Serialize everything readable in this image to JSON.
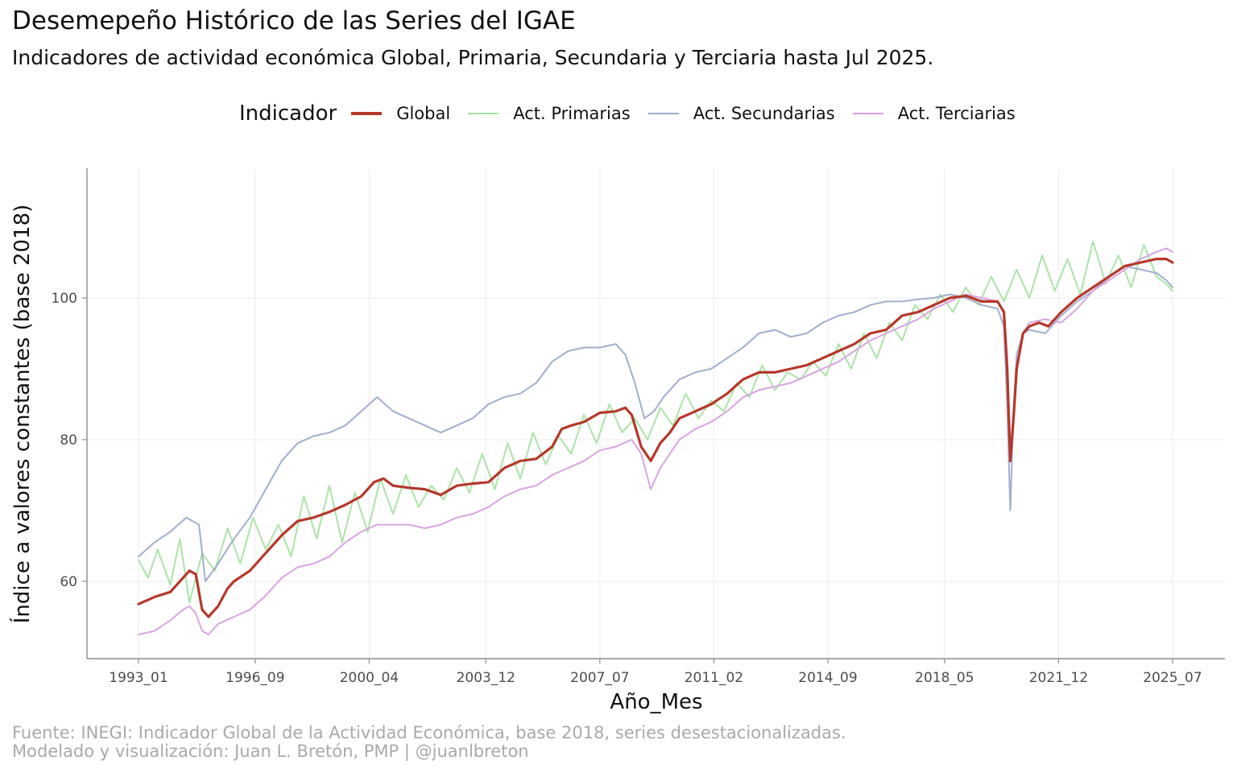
{
  "title": "Desemepeño Histórico de las Series del IGAE",
  "subtitle": "Indicadores de actividad económica Global, Primaria, Secundaria y Terciaria hasta Jul 2025.",
  "legend": {
    "title": "Indicador",
    "items": [
      {
        "label": "Global",
        "color": "#b5382a"
      },
      {
        "label": "Act. Primarias",
        "color": "#a7e3a2"
      },
      {
        "label": "Act. Secundarias",
        "color": "#9daacb"
      },
      {
        "label": "Act. Terciarias",
        "color": "#d6a0e0"
      }
    ]
  },
  "caption": {
    "line1": "Fuente: INEGI: Indicador Global de la Actividad Económica, base 2018, series desestacionalizadas.",
    "line2": "Modelado y visualización: Juan L. Bretón, PMP | @juanlbreton"
  },
  "chart_data": {
    "type": "line",
    "title": "Desemepeño Histórico de las Series del IGAE",
    "xlabel": "Año_Mes",
    "ylabel": "Índice a valores constantes (base 2018)",
    "x_range": [
      1993.0,
      2025.5
    ],
    "ylim": [
      49.5,
      118.5
    ],
    "x_ticks": [
      {
        "label": "1993_01",
        "x": 1993.0
      },
      {
        "label": "1996_09",
        "x": 1996.667
      },
      {
        "label": "2000_04",
        "x": 2000.25
      },
      {
        "label": "2003_12",
        "x": 2003.917
      },
      {
        "label": "2007_07",
        "x": 2007.5
      },
      {
        "label": "2011_02",
        "x": 2011.083
      },
      {
        "label": "2014_09",
        "x": 2014.667
      },
      {
        "label": "2018_05",
        "x": 2018.333
      },
      {
        "label": "2021_12",
        "x": 2021.917
      },
      {
        "label": "2025_07",
        "x": 2025.5
      }
    ],
    "y_ticks": [
      60,
      80,
      100
    ],
    "grid": true,
    "legend_position": "top",
    "series": [
      {
        "name": "Global",
        "color": "#b5382a",
        "width": 3.2,
        "x": [
          1993.0,
          1993.5,
          1994.0,
          1994.4,
          1994.6,
          1994.8,
          1995.0,
          1995.2,
          1995.5,
          1995.8,
          1996.0,
          1996.5,
          1997.0,
          1997.5,
          1998.0,
          1998.5,
          1999.0,
          1999.5,
          2000.0,
          2000.4,
          2000.7,
          2001.0,
          2001.5,
          2002.0,
          2002.5,
          2003.0,
          2003.5,
          2004.0,
          2004.5,
          2005.0,
          2005.5,
          2006.0,
          2006.3,
          2006.6,
          2007.0,
          2007.5,
          2008.0,
          2008.3,
          2008.5,
          2008.8,
          2009.1,
          2009.4,
          2009.7,
          2010.0,
          2010.5,
          2011.0,
          2011.5,
          2012.0,
          2012.5,
          2013.0,
          2013.5,
          2014.0,
          2014.5,
          2015.0,
          2015.5,
          2016.0,
          2016.5,
          2017.0,
          2017.5,
          2018.0,
          2018.5,
          2019.0,
          2019.5,
          2020.0,
          2020.2,
          2020.3,
          2020.4,
          2020.5,
          2020.6,
          2020.8,
          2021.0,
          2021.3,
          2021.6,
          2022.0,
          2022.5,
          2023.0,
          2023.5,
          2024.0,
          2024.5,
          2025.0,
          2025.3,
          2025.5
        ],
        "y": [
          56.8,
          57.8,
          58.5,
          60.5,
          61.5,
          61.0,
          56.0,
          55.0,
          56.5,
          59.0,
          60.0,
          61.5,
          64.0,
          66.5,
          68.5,
          69.0,
          69.8,
          70.8,
          72.0,
          74.0,
          74.5,
          73.5,
          73.2,
          73.0,
          72.2,
          73.5,
          73.8,
          74.0,
          76.0,
          77.0,
          77.3,
          79.0,
          81.5,
          82.0,
          82.5,
          83.8,
          84.0,
          84.5,
          83.5,
          79.0,
          77.0,
          79.5,
          81.0,
          83.0,
          84.0,
          85.0,
          86.5,
          88.5,
          89.5,
          89.5,
          90.0,
          90.5,
          91.5,
          92.5,
          93.5,
          95.0,
          95.5,
          97.5,
          98.0,
          99.0,
          100.0,
          100.3,
          99.5,
          99.5,
          98.0,
          90.0,
          77.0,
          83.0,
          90.0,
          95.0,
          96.0,
          96.5,
          96.0,
          98.0,
          100.0,
          101.5,
          103.0,
          104.5,
          105.0,
          105.5,
          105.5,
          105.0
        ]
      },
      {
        "name": "Act. Primarias",
        "color": "#a7e3a2",
        "width": 2,
        "x": [
          1993.0,
          1993.3,
          1993.6,
          1994.0,
          1994.3,
          1994.6,
          1995.0,
          1995.4,
          1995.8,
          1996.2,
          1996.6,
          1997.0,
          1997.4,
          1997.8,
          1998.2,
          1998.6,
          1999.0,
          1999.4,
          1999.8,
          2000.2,
          2000.6,
          2001.0,
          2001.4,
          2001.8,
          2002.2,
          2002.6,
          2003.0,
          2003.4,
          2003.8,
          2004.2,
          2004.6,
          2005.0,
          2005.4,
          2005.8,
          2006.2,
          2006.6,
          2007.0,
          2007.4,
          2007.8,
          2008.2,
          2008.6,
          2009.0,
          2009.4,
          2009.8,
          2010.2,
          2010.6,
          2011.0,
          2011.4,
          2011.8,
          2012.2,
          2012.6,
          2013.0,
          2013.4,
          2013.8,
          2014.2,
          2014.6,
          2015.0,
          2015.4,
          2015.8,
          2016.2,
          2016.6,
          2017.0,
          2017.4,
          2017.8,
          2018.2,
          2018.6,
          2019.0,
          2019.4,
          2019.8,
          2020.2,
          2020.6,
          2021.0,
          2021.4,
          2021.8,
          2022.2,
          2022.6,
          2023.0,
          2023.4,
          2023.8,
          2024.2,
          2024.6,
          2025.0,
          2025.3,
          2025.5
        ],
        "y": [
          63.0,
          60.5,
          64.5,
          59.5,
          66.0,
          57.0,
          64.0,
          61.5,
          67.5,
          62.5,
          69.0,
          64.5,
          68.0,
          63.5,
          72.0,
          66.0,
          73.5,
          65.5,
          72.5,
          67.0,
          74.5,
          69.5,
          75.0,
          70.5,
          73.5,
          71.5,
          76.0,
          72.5,
          78.0,
          73.0,
          79.5,
          74.5,
          81.0,
          76.5,
          80.5,
          78.0,
          83.5,
          79.5,
          85.0,
          81.0,
          83.0,
          80.0,
          84.5,
          82.0,
          86.5,
          83.0,
          85.5,
          84.0,
          88.0,
          86.0,
          90.5,
          87.0,
          89.5,
          88.5,
          91.0,
          89.0,
          93.5,
          90.0,
          95.0,
          91.5,
          96.5,
          94.0,
          99.0,
          97.0,
          100.5,
          98.0,
          101.5,
          99.0,
          103.0,
          99.5,
          104.0,
          100.0,
          106.0,
          101.0,
          105.5,
          100.5,
          108.0,
          102.0,
          106.0,
          101.5,
          107.5,
          103.0,
          102.0,
          101.0
        ]
      },
      {
        "name": "Act. Secundarias",
        "color": "#9daacb",
        "width": 2,
        "x": [
          1993.0,
          1993.5,
          1994.0,
          1994.5,
          1994.9,
          1995.1,
          1995.5,
          1996.0,
          1996.5,
          1997.0,
          1997.5,
          1998.0,
          1998.5,
          1999.0,
          1999.5,
          2000.0,
          2000.5,
          2001.0,
          2001.5,
          2002.0,
          2002.5,
          2003.0,
          2003.5,
          2004.0,
          2004.5,
          2005.0,
          2005.5,
          2006.0,
          2006.5,
          2007.0,
          2007.5,
          2008.0,
          2008.3,
          2008.6,
          2008.9,
          2009.2,
          2009.5,
          2010.0,
          2010.5,
          2011.0,
          2011.5,
          2012.0,
          2012.5,
          2013.0,
          2013.5,
          2014.0,
          2014.5,
          2015.0,
          2015.5,
          2016.0,
          2016.5,
          2017.0,
          2017.5,
          2018.0,
          2018.5,
          2019.0,
          2019.5,
          2020.0,
          2020.2,
          2020.3,
          2020.4,
          2020.5,
          2020.6,
          2020.8,
          2021.0,
          2021.5,
          2022.0,
          2022.5,
          2023.0,
          2023.5,
          2024.0,
          2024.5,
          2025.0,
          2025.3,
          2025.5
        ],
        "y": [
          63.5,
          65.5,
          67.0,
          69.0,
          68.0,
          60.0,
          62.5,
          66.0,
          69.0,
          73.0,
          77.0,
          79.5,
          80.5,
          81.0,
          82.0,
          84.0,
          86.0,
          84.0,
          83.0,
          82.0,
          81.0,
          82.0,
          83.0,
          85.0,
          86.0,
          86.5,
          88.0,
          91.0,
          92.5,
          93.0,
          93.0,
          93.5,
          92.0,
          88.0,
          83.0,
          84.0,
          86.0,
          88.5,
          89.5,
          90.0,
          91.5,
          93.0,
          95.0,
          95.5,
          94.5,
          95.0,
          96.5,
          97.5,
          98.0,
          99.0,
          99.5,
          99.5,
          99.8,
          100.0,
          100.5,
          100.0,
          99.0,
          98.5,
          96.0,
          85.0,
          70.0,
          84.0,
          92.0,
          95.0,
          95.5,
          95.0,
          97.5,
          99.5,
          101.0,
          103.0,
          104.5,
          104.0,
          103.5,
          102.5,
          101.5
        ]
      },
      {
        "name": "Act. Terciarias",
        "color": "#d6a0e0",
        "width": 2,
        "x": [
          1993.0,
          1993.5,
          1994.0,
          1994.4,
          1994.6,
          1994.8,
          1995.0,
          1995.2,
          1995.5,
          1996.0,
          1996.5,
          1997.0,
          1997.5,
          1998.0,
          1998.5,
          1999.0,
          1999.5,
          2000.0,
          2000.5,
          2001.0,
          2001.5,
          2002.0,
          2002.5,
          2003.0,
          2003.5,
          2004.0,
          2004.5,
          2005.0,
          2005.5,
          2006.0,
          2006.5,
          2007.0,
          2007.5,
          2008.0,
          2008.5,
          2008.8,
          2009.1,
          2009.4,
          2009.7,
          2010.0,
          2010.5,
          2011.0,
          2011.5,
          2012.0,
          2012.5,
          2013.0,
          2013.5,
          2014.0,
          2014.5,
          2015.0,
          2015.5,
          2016.0,
          2016.5,
          2017.0,
          2017.5,
          2018.0,
          2018.5,
          2019.0,
          2019.5,
          2020.0,
          2020.2,
          2020.3,
          2020.4,
          2020.5,
          2020.6,
          2020.8,
          2021.0,
          2021.5,
          2022.0,
          2022.5,
          2023.0,
          2023.5,
          2024.0,
          2024.5,
          2025.0,
          2025.3,
          2025.5
        ],
        "y": [
          52.5,
          53.0,
          54.5,
          56.0,
          56.5,
          55.5,
          53.0,
          52.5,
          54.0,
          55.0,
          56.0,
          58.0,
          60.5,
          62.0,
          62.5,
          63.5,
          65.5,
          67.0,
          68.0,
          68.0,
          68.0,
          67.5,
          68.0,
          69.0,
          69.5,
          70.5,
          72.0,
          73.0,
          73.5,
          75.0,
          76.0,
          77.0,
          78.5,
          79.0,
          80.0,
          78.0,
          73.0,
          76.0,
          78.0,
          80.0,
          81.5,
          82.5,
          84.0,
          86.0,
          87.0,
          87.5,
          88.0,
          89.0,
          90.0,
          91.0,
          92.5,
          94.0,
          95.0,
          96.0,
          97.0,
          98.5,
          99.5,
          100.5,
          100.0,
          99.5,
          98.0,
          92.0,
          78.0,
          84.0,
          90.0,
          95.0,
          96.5,
          97.0,
          96.5,
          98.5,
          101.0,
          102.5,
          104.0,
          105.5,
          106.5,
          107.0,
          106.5
        ]
      }
    ]
  }
}
